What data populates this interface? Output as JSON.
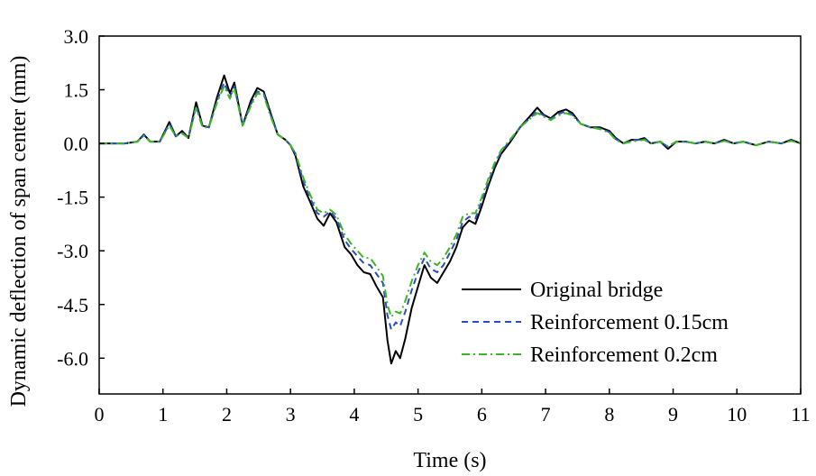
{
  "chart_data": {
    "type": "line",
    "title": "",
    "xlabel": "Time (s)",
    "ylabel": "Dynamic deflection of span center (mm)",
    "xlim": [
      0,
      11
    ],
    "ylim": [
      -7,
      3
    ],
    "x_ticks": [
      0,
      1,
      2,
      3,
      4,
      5,
      6,
      7,
      8,
      9,
      10,
      11
    ],
    "x_tick_labels": [
      "0",
      "1",
      "2",
      "3",
      "4",
      "5",
      "6",
      "7",
      "8",
      "9",
      "10",
      "11"
    ],
    "y_ticks": [
      3,
      1.5,
      0,
      -1.5,
      -3,
      -4.5,
      -6
    ],
    "y_tick_labels": [
      "3.0",
      "1.5",
      "0.0",
      "-1.5",
      "-3.0",
      "-4.5",
      "-6.0"
    ],
    "grid": false,
    "legend_position": "bottom-right",
    "series": [
      {
        "name": "Original bridge",
        "color": "#000000",
        "dash": "solid",
        "points": [
          [
            0,
            0
          ],
          [
            0.4,
            0
          ],
          [
            0.6,
            0.05
          ],
          [
            0.7,
            0.25
          ],
          [
            0.8,
            0.05
          ],
          [
            0.95,
            0.05
          ],
          [
            1.1,
            0.6
          ],
          [
            1.2,
            0.2
          ],
          [
            1.3,
            0.35
          ],
          [
            1.4,
            0.15
          ],
          [
            1.52,
            1.15
          ],
          [
            1.62,
            0.5
          ],
          [
            1.72,
            0.45
          ],
          [
            1.85,
            1.3
          ],
          [
            1.96,
            1.9
          ],
          [
            2.05,
            1.4
          ],
          [
            2.12,
            1.7
          ],
          [
            2.25,
            0.5
          ],
          [
            2.38,
            1.2
          ],
          [
            2.48,
            1.55
          ],
          [
            2.58,
            1.45
          ],
          [
            2.68,
            0.9
          ],
          [
            2.8,
            0.25
          ],
          [
            2.92,
            0.1
          ],
          [
            3.0,
            -0.05
          ],
          [
            3.08,
            -0.35
          ],
          [
            3.2,
            -1.2
          ],
          [
            3.3,
            -1.6
          ],
          [
            3.42,
            -2.1
          ],
          [
            3.52,
            -2.3
          ],
          [
            3.62,
            -1.95
          ],
          [
            3.72,
            -2.2
          ],
          [
            3.85,
            -2.9
          ],
          [
            3.95,
            -3.1
          ],
          [
            4.05,
            -3.4
          ],
          [
            4.15,
            -3.6
          ],
          [
            4.25,
            -3.65
          ],
          [
            4.35,
            -4.0
          ],
          [
            4.45,
            -4.3
          ],
          [
            4.52,
            -5.5
          ],
          [
            4.58,
            -6.15
          ],
          [
            4.65,
            -5.8
          ],
          [
            4.72,
            -6.0
          ],
          [
            4.8,
            -5.45
          ],
          [
            4.9,
            -4.6
          ],
          [
            5.0,
            -4.0
          ],
          [
            5.1,
            -3.4
          ],
          [
            5.2,
            -3.75
          ],
          [
            5.3,
            -3.9
          ],
          [
            5.4,
            -3.6
          ],
          [
            5.5,
            -3.3
          ],
          [
            5.6,
            -2.9
          ],
          [
            5.7,
            -2.35
          ],
          [
            5.8,
            -2.15
          ],
          [
            5.9,
            -2.25
          ],
          [
            6.0,
            -1.75
          ],
          [
            6.1,
            -1.2
          ],
          [
            6.2,
            -0.7
          ],
          [
            6.3,
            -0.3
          ],
          [
            6.45,
            0.05
          ],
          [
            6.6,
            0.45
          ],
          [
            6.75,
            0.75
          ],
          [
            6.87,
            1.0
          ],
          [
            6.97,
            0.8
          ],
          [
            7.08,
            0.7
          ],
          [
            7.2,
            0.88
          ],
          [
            7.32,
            0.95
          ],
          [
            7.42,
            0.85
          ],
          [
            7.55,
            0.55
          ],
          [
            7.7,
            0.45
          ],
          [
            7.85,
            0.45
          ],
          [
            8.0,
            0.35
          ],
          [
            8.1,
            0.15
          ],
          [
            8.22,
            0.0
          ],
          [
            8.35,
            0.1
          ],
          [
            8.45,
            0.1
          ],
          [
            8.55,
            0.15
          ],
          [
            8.65,
            0.0
          ],
          [
            8.8,
            0.05
          ],
          [
            8.92,
            -0.15
          ],
          [
            9.05,
            0.05
          ],
          [
            9.2,
            0.05
          ],
          [
            9.35,
            0.0
          ],
          [
            9.5,
            0.05
          ],
          [
            9.65,
            0.0
          ],
          [
            9.8,
            0.1
          ],
          [
            9.95,
            0.0
          ],
          [
            10.1,
            0.05
          ],
          [
            10.3,
            -0.05
          ],
          [
            10.5,
            0.05
          ],
          [
            10.7,
            0.0
          ],
          [
            10.85,
            0.1
          ],
          [
            11.0,
            0.0
          ]
        ]
      },
      {
        "name": "Reinforcement 0.15cm",
        "color": "#2b4fb8",
        "dash": "dashed",
        "points": [
          [
            0,
            0
          ],
          [
            0.4,
            0
          ],
          [
            0.6,
            0.05
          ],
          [
            0.7,
            0.23
          ],
          [
            0.8,
            0.05
          ],
          [
            0.95,
            0.05
          ],
          [
            1.1,
            0.55
          ],
          [
            1.2,
            0.2
          ],
          [
            1.3,
            0.3
          ],
          [
            1.4,
            0.15
          ],
          [
            1.52,
            1.05
          ],
          [
            1.62,
            0.48
          ],
          [
            1.72,
            0.45
          ],
          [
            1.85,
            1.2
          ],
          [
            1.96,
            1.7
          ],
          [
            2.05,
            1.3
          ],
          [
            2.12,
            1.6
          ],
          [
            2.25,
            0.5
          ],
          [
            2.38,
            1.1
          ],
          [
            2.48,
            1.45
          ],
          [
            2.58,
            1.4
          ],
          [
            2.68,
            0.85
          ],
          [
            2.8,
            0.25
          ],
          [
            2.92,
            0.1
          ],
          [
            3.0,
            -0.05
          ],
          [
            3.08,
            -0.3
          ],
          [
            3.2,
            -1.05
          ],
          [
            3.3,
            -1.5
          ],
          [
            3.42,
            -1.95
          ],
          [
            3.52,
            -2.05
          ],
          [
            3.62,
            -1.9
          ],
          [
            3.72,
            -2.1
          ],
          [
            3.85,
            -2.7
          ],
          [
            3.95,
            -2.95
          ],
          [
            4.05,
            -3.15
          ],
          [
            4.15,
            -3.35
          ],
          [
            4.25,
            -3.4
          ],
          [
            4.35,
            -3.65
          ],
          [
            4.45,
            -3.9
          ],
          [
            4.52,
            -4.8
          ],
          [
            4.58,
            -5.2
          ],
          [
            4.65,
            -5.0
          ],
          [
            4.72,
            -5.1
          ],
          [
            4.8,
            -4.7
          ],
          [
            4.9,
            -4.1
          ],
          [
            5.0,
            -3.6
          ],
          [
            5.1,
            -3.2
          ],
          [
            5.2,
            -3.5
          ],
          [
            5.3,
            -3.6
          ],
          [
            5.4,
            -3.4
          ],
          [
            5.5,
            -3.05
          ],
          [
            5.6,
            -2.7
          ],
          [
            5.7,
            -2.2
          ],
          [
            5.8,
            -2.05
          ],
          [
            5.9,
            -2.1
          ],
          [
            6.0,
            -1.6
          ],
          [
            6.1,
            -1.1
          ],
          [
            6.2,
            -0.6
          ],
          [
            6.3,
            -0.25
          ],
          [
            6.45,
            0.1
          ],
          [
            6.6,
            0.45
          ],
          [
            6.75,
            0.7
          ],
          [
            6.87,
            0.9
          ],
          [
            6.97,
            0.78
          ],
          [
            7.08,
            0.68
          ],
          [
            7.2,
            0.82
          ],
          [
            7.32,
            0.9
          ],
          [
            7.42,
            0.8
          ],
          [
            7.55,
            0.55
          ],
          [
            7.7,
            0.45
          ],
          [
            7.85,
            0.42
          ],
          [
            8.0,
            0.32
          ],
          [
            8.1,
            0.12
          ],
          [
            8.22,
            0.0
          ],
          [
            8.35,
            0.08
          ],
          [
            8.45,
            0.1
          ],
          [
            8.55,
            0.12
          ],
          [
            8.65,
            0.0
          ],
          [
            8.8,
            0.05
          ],
          [
            8.92,
            -0.1
          ],
          [
            9.05,
            0.05
          ],
          [
            9.2,
            0.05
          ],
          [
            9.35,
            0.0
          ],
          [
            9.5,
            0.05
          ],
          [
            9.65,
            0.0
          ],
          [
            9.8,
            0.08
          ],
          [
            9.95,
            0.0
          ],
          [
            10.1,
            0.05
          ],
          [
            10.3,
            -0.05
          ],
          [
            10.5,
            0.05
          ],
          [
            10.7,
            0.0
          ],
          [
            10.85,
            0.08
          ],
          [
            11.0,
            0.0
          ]
        ]
      },
      {
        "name": "Reinforcement 0.2cm",
        "color": "#3cb526",
        "dash": "dashdot",
        "points": [
          [
            0,
            0
          ],
          [
            0.4,
            0
          ],
          [
            0.6,
            0.05
          ],
          [
            0.7,
            0.22
          ],
          [
            0.8,
            0.05
          ],
          [
            0.95,
            0.05
          ],
          [
            1.1,
            0.5
          ],
          [
            1.2,
            0.2
          ],
          [
            1.3,
            0.28
          ],
          [
            1.4,
            0.15
          ],
          [
            1.52,
            1.0
          ],
          [
            1.62,
            0.45
          ],
          [
            1.72,
            0.45
          ],
          [
            1.85,
            1.15
          ],
          [
            1.96,
            1.6
          ],
          [
            2.05,
            1.25
          ],
          [
            2.12,
            1.55
          ],
          [
            2.25,
            0.5
          ],
          [
            2.38,
            1.05
          ],
          [
            2.48,
            1.4
          ],
          [
            2.58,
            1.35
          ],
          [
            2.68,
            0.8
          ],
          [
            2.8,
            0.25
          ],
          [
            2.92,
            0.1
          ],
          [
            3.0,
            -0.05
          ],
          [
            3.08,
            -0.28
          ],
          [
            3.2,
            -0.95
          ],
          [
            3.3,
            -1.4
          ],
          [
            3.42,
            -1.85
          ],
          [
            3.52,
            -1.95
          ],
          [
            3.62,
            -1.85
          ],
          [
            3.72,
            -2.0
          ],
          [
            3.85,
            -2.55
          ],
          [
            3.95,
            -2.8
          ],
          [
            4.05,
            -3.0
          ],
          [
            4.15,
            -3.2
          ],
          [
            4.25,
            -3.2
          ],
          [
            4.35,
            -3.45
          ],
          [
            4.45,
            -3.7
          ],
          [
            4.52,
            -4.5
          ],
          [
            4.58,
            -4.85
          ],
          [
            4.65,
            -4.7
          ],
          [
            4.72,
            -4.75
          ],
          [
            4.8,
            -4.4
          ],
          [
            4.9,
            -3.85
          ],
          [
            5.0,
            -3.4
          ],
          [
            5.1,
            -3.05
          ],
          [
            5.2,
            -3.3
          ],
          [
            5.3,
            -3.4
          ],
          [
            5.4,
            -3.2
          ],
          [
            5.5,
            -2.9
          ],
          [
            5.6,
            -2.55
          ],
          [
            5.7,
            -2.05
          ],
          [
            5.8,
            -1.95
          ],
          [
            5.9,
            -1.95
          ],
          [
            6.0,
            -1.5
          ],
          [
            6.1,
            -1.0
          ],
          [
            6.2,
            -0.55
          ],
          [
            6.3,
            -0.2
          ],
          [
            6.45,
            0.12
          ],
          [
            6.6,
            0.45
          ],
          [
            6.75,
            0.68
          ],
          [
            6.87,
            0.85
          ],
          [
            6.97,
            0.75
          ],
          [
            7.08,
            0.65
          ],
          [
            7.2,
            0.78
          ],
          [
            7.32,
            0.85
          ],
          [
            7.42,
            0.78
          ],
          [
            7.55,
            0.55
          ],
          [
            7.7,
            0.45
          ],
          [
            7.85,
            0.4
          ],
          [
            8.0,
            0.3
          ],
          [
            8.1,
            0.1
          ],
          [
            8.22,
            0.0
          ],
          [
            8.35,
            0.05
          ],
          [
            8.45,
            0.08
          ],
          [
            8.55,
            0.1
          ],
          [
            8.65,
            0.0
          ],
          [
            8.8,
            0.05
          ],
          [
            8.92,
            -0.08
          ],
          [
            9.05,
            0.05
          ],
          [
            9.2,
            0.05
          ],
          [
            9.35,
            0.0
          ],
          [
            9.5,
            0.05
          ],
          [
            9.65,
            0.0
          ],
          [
            9.8,
            0.07
          ],
          [
            9.95,
            0.0
          ],
          [
            10.1,
            0.05
          ],
          [
            10.3,
            -0.05
          ],
          [
            10.5,
            0.05
          ],
          [
            10.7,
            0.0
          ],
          [
            10.85,
            0.07
          ],
          [
            11.0,
            0.0
          ]
        ]
      }
    ]
  }
}
